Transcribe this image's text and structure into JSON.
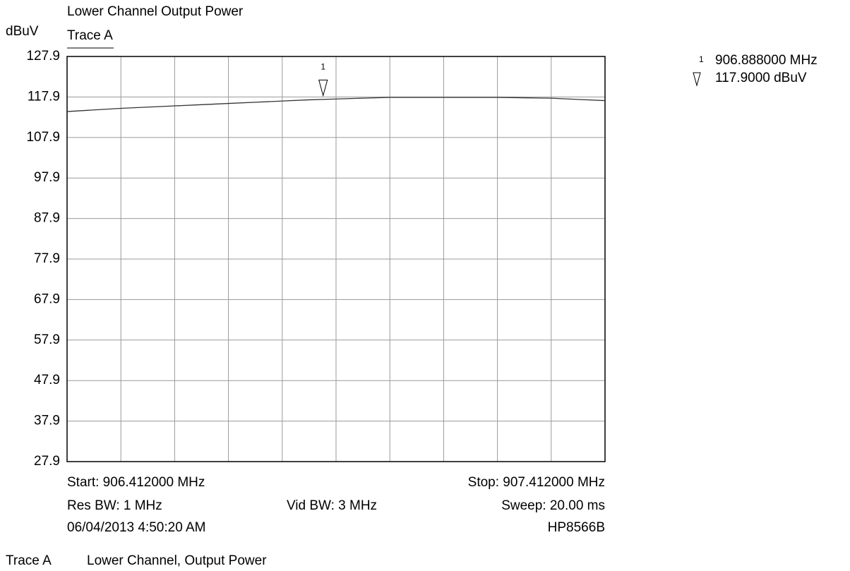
{
  "chart_data": {
    "type": "line",
    "title": "Lower Channel Output Power",
    "y_label": "dBuV",
    "trace_label": "Trace A",
    "x": [
      906.412,
      906.462,
      906.512,
      906.562,
      906.612,
      906.662,
      906.712,
      906.762,
      906.812,
      906.862,
      906.912,
      906.962,
      907.012,
      907.062,
      907.112,
      907.162,
      907.212,
      907.262,
      907.312,
      907.362,
      907.412
    ],
    "series": [
      {
        "name": "Trace A",
        "color": "#333333",
        "values": [
          114.3,
          114.7,
          115.1,
          115.4,
          115.7,
          116.0,
          116.3,
          116.6,
          116.9,
          117.2,
          117.4,
          117.6,
          117.8,
          117.8,
          117.8,
          117.8,
          117.8,
          117.7,
          117.6,
          117.3,
          117.0
        ]
      }
    ],
    "xlim": [
      906.412,
      907.412
    ],
    "xticks": [
      906.412,
      906.512,
      906.612,
      906.712,
      906.812,
      906.912,
      907.012,
      907.112,
      907.212,
      907.312,
      907.412
    ],
    "ylim": [
      27.9,
      127.9
    ],
    "yticks": [
      27.9,
      37.9,
      47.9,
      57.9,
      67.9,
      77.9,
      87.9,
      97.9,
      107.9,
      117.9,
      127.9
    ],
    "grid": true,
    "marker": {
      "label": "1",
      "x": 906.888,
      "y": 117.9,
      "x_label": "906.888000 MHz",
      "y_label": "117.9000 dBuV"
    },
    "info": {
      "start": "Start: 906.412000 MHz",
      "stop": "Stop: 907.412000 MHz",
      "res_bw": "Res BW: 1 MHz",
      "vid_bw": "Vid BW: 3 MHz",
      "sweep": "Sweep: 20.00 ms",
      "date": "06/04/2013 4:50:20 AM",
      "instrument": "HP8566B"
    },
    "footer": {
      "trace": "Trace A",
      "description": "Lower Channel, Output Power"
    }
  }
}
